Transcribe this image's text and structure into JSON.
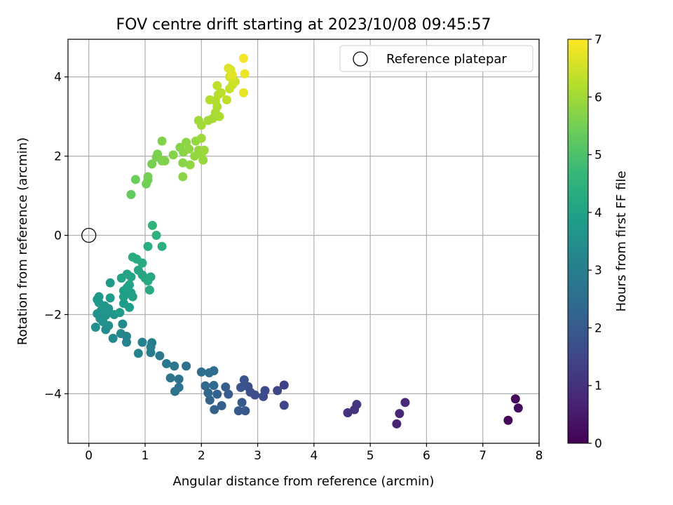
{
  "chart_data": {
    "type": "scatter",
    "title": "FOV centre drift starting at 2023/10/08 09:45:57",
    "xlabel": "Angular distance from reference (arcmin)",
    "ylabel": "Rotation from reference (arcmin)",
    "xlim": [
      -0.37,
      8.0
    ],
    "ylim": [
      -5.25,
      4.95
    ],
    "xticks": [
      0,
      1,
      2,
      3,
      4,
      5,
      6,
      7,
      8
    ],
    "yticks": [
      -4,
      -2,
      0,
      2,
      4
    ],
    "ytick_labels": [
      "−4",
      "−2",
      "0",
      "2",
      "4"
    ],
    "grid": true,
    "legend": {
      "position": "top-right",
      "entries": [
        "Reference platepar"
      ]
    },
    "reference_point": {
      "x": 0,
      "y": 0,
      "label": "Reference platepar"
    },
    "colorbar": {
      "label": "Hours from first FF file",
      "range": [
        0,
        7
      ],
      "ticks": [
        0,
        1,
        2,
        3,
        4,
        5,
        6,
        7
      ],
      "colormap": "viridis",
      "colormap_stops": [
        "#440154",
        "#482878",
        "#3e4989",
        "#31688e",
        "#26828e",
        "#1f9e89",
        "#35b779",
        "#6ece58",
        "#b5de2b",
        "#fde725"
      ]
    },
    "points": [
      {
        "x": 7.45,
        "y": -4.67,
        "h": 0.1
      },
      {
        "x": 7.58,
        "y": -4.13,
        "h": 0.15
      },
      {
        "x": 7.63,
        "y": -4.36,
        "h": 0.2
      },
      {
        "x": 5.47,
        "y": -4.76,
        "h": 0.7
      },
      {
        "x": 5.52,
        "y": -4.5,
        "h": 0.75
      },
      {
        "x": 5.62,
        "y": -4.22,
        "h": 0.8
      },
      {
        "x": 4.6,
        "y": -4.48,
        "h": 1.0
      },
      {
        "x": 4.72,
        "y": -4.4,
        "h": 1.05
      },
      {
        "x": 4.76,
        "y": -4.27,
        "h": 1.1
      },
      {
        "x": 3.47,
        "y": -3.78,
        "h": 1.4
      },
      {
        "x": 3.47,
        "y": -4.29,
        "h": 1.45
      },
      {
        "x": 3.35,
        "y": -3.92,
        "h": 1.5
      },
      {
        "x": 3.13,
        "y": -3.92,
        "h": 1.55
      },
      {
        "x": 3.1,
        "y": -4.07,
        "h": 1.6
      },
      {
        "x": 2.95,
        "y": -4.03,
        "h": 1.65
      },
      {
        "x": 2.87,
        "y": -3.96,
        "h": 1.7
      },
      {
        "x": 2.83,
        "y": -3.82,
        "h": 1.75
      },
      {
        "x": 2.76,
        "y": -3.65,
        "h": 1.8
      },
      {
        "x": 2.7,
        "y": -3.84,
        "h": 1.85
      },
      {
        "x": 2.78,
        "y": -4.43,
        "h": 1.9
      },
      {
        "x": 2.72,
        "y": -4.22,
        "h": 1.95
      },
      {
        "x": 2.66,
        "y": -4.43,
        "h": 1.98
      },
      {
        "x": 2.48,
        "y": -4.01,
        "h": 2.0
      },
      {
        "x": 2.43,
        "y": -3.83,
        "h": 2.05
      },
      {
        "x": 2.36,
        "y": -4.3,
        "h": 2.1
      },
      {
        "x": 2.28,
        "y": -4.01,
        "h": 2.15
      },
      {
        "x": 2.23,
        "y": -4.4,
        "h": 2.2
      },
      {
        "x": 2.15,
        "y": -4.16,
        "h": 2.25
      },
      {
        "x": 2.12,
        "y": -3.98,
        "h": 2.3
      },
      {
        "x": 2.07,
        "y": -3.8,
        "h": 2.35
      },
      {
        "x": 2.22,
        "y": -3.79,
        "h": 2.4
      },
      {
        "x": 2.22,
        "y": -3.42,
        "h": 2.45
      },
      {
        "x": 2.14,
        "y": -3.47,
        "h": 2.5
      },
      {
        "x": 2.0,
        "y": -3.45,
        "h": 2.55
      },
      {
        "x": 1.73,
        "y": -3.3,
        "h": 2.6
      },
      {
        "x": 1.6,
        "y": -3.84,
        "h": 2.62
      },
      {
        "x": 1.53,
        "y": -3.94,
        "h": 2.65
      },
      {
        "x": 1.6,
        "y": -3.63,
        "h": 2.68
      },
      {
        "x": 1.45,
        "y": -3.6,
        "h": 2.7
      },
      {
        "x": 1.52,
        "y": -3.3,
        "h": 2.75
      },
      {
        "x": 1.38,
        "y": -3.24,
        "h": 2.8
      },
      {
        "x": 1.26,
        "y": -3.04,
        "h": 2.85
      },
      {
        "x": 1.1,
        "y": -2.96,
        "h": 2.9
      },
      {
        "x": 1.12,
        "y": -2.71,
        "h": 2.95
      },
      {
        "x": 1.1,
        "y": -2.82,
        "h": 3.0
      },
      {
        "x": 0.95,
        "y": -2.7,
        "h": 3.05
      },
      {
        "x": 0.88,
        "y": -2.98,
        "h": 3.1
      },
      {
        "x": 0.67,
        "y": -2.7,
        "h": 3.15
      },
      {
        "x": 0.67,
        "y": -2.55,
        "h": 3.2
      },
      {
        "x": 0.57,
        "y": -2.48,
        "h": 3.25
      },
      {
        "x": 0.43,
        "y": -2.6,
        "h": 3.3
      },
      {
        "x": 0.6,
        "y": -2.24,
        "h": 3.35
      },
      {
        "x": 0.3,
        "y": -2.38,
        "h": 3.4
      },
      {
        "x": 0.35,
        "y": -2.28,
        "h": 3.45
      },
      {
        "x": 0.25,
        "y": -2.18,
        "h": 3.5
      },
      {
        "x": 0.12,
        "y": -2.32,
        "h": 3.53
      },
      {
        "x": 0.2,
        "y": -2.1,
        "h": 3.56
      },
      {
        "x": 0.15,
        "y": -1.98,
        "h": 3.58
      },
      {
        "x": 0.22,
        "y": -1.9,
        "h": 3.6
      },
      {
        "x": 0.3,
        "y": -2.02,
        "h": 3.62
      },
      {
        "x": 0.35,
        "y": -1.85,
        "h": 3.65
      },
      {
        "x": 0.45,
        "y": -2.0,
        "h": 3.68
      },
      {
        "x": 0.28,
        "y": -1.78,
        "h": 3.7
      },
      {
        "x": 0.18,
        "y": -1.7,
        "h": 3.72
      },
      {
        "x": 0.15,
        "y": -1.62,
        "h": 3.74
      },
      {
        "x": 0.18,
        "y": -1.55,
        "h": 3.76
      },
      {
        "x": 0.38,
        "y": -1.58,
        "h": 3.78
      },
      {
        "x": 0.38,
        "y": -1.2,
        "h": 3.8
      },
      {
        "x": 0.55,
        "y": -1.95,
        "h": 3.82
      },
      {
        "x": 0.62,
        "y": -1.72,
        "h": 3.85
      },
      {
        "x": 0.72,
        "y": -1.82,
        "h": 3.88
      },
      {
        "x": 0.62,
        "y": -1.55,
        "h": 3.9
      },
      {
        "x": 0.62,
        "y": -1.4,
        "h": 3.92
      },
      {
        "x": 0.68,
        "y": -1.32,
        "h": 3.94
      },
      {
        "x": 0.75,
        "y": -1.45,
        "h": 3.96
      },
      {
        "x": 0.78,
        "y": -1.55,
        "h": 3.98
      },
      {
        "x": 0.72,
        "y": -1.25,
        "h": 4.0
      },
      {
        "x": 0.58,
        "y": -1.08,
        "h": 4.02
      },
      {
        "x": 0.68,
        "y": -0.98,
        "h": 4.05
      },
      {
        "x": 0.75,
        "y": -1.05,
        "h": 4.08
      },
      {
        "x": 0.88,
        "y": -0.88,
        "h": 4.1
      },
      {
        "x": 0.95,
        "y": -1.0,
        "h": 4.12
      },
      {
        "x": 1.0,
        "y": -1.08,
        "h": 4.15
      },
      {
        "x": 1.1,
        "y": -1.05,
        "h": 4.18
      },
      {
        "x": 1.08,
        "y": -1.38,
        "h": 4.2
      },
      {
        "x": 1.05,
        "y": -1.15,
        "h": 4.22
      },
      {
        "x": 0.95,
        "y": -0.7,
        "h": 4.25
      },
      {
        "x": 0.85,
        "y": -0.6,
        "h": 4.28
      },
      {
        "x": 0.78,
        "y": -0.55,
        "h": 4.3
      },
      {
        "x": 1.05,
        "y": -0.28,
        "h": 4.35
      },
      {
        "x": 1.3,
        "y": -0.28,
        "h": 4.4
      },
      {
        "x": 1.2,
        "y": 0.0,
        "h": 4.45
      },
      {
        "x": 1.13,
        "y": 0.25,
        "h": 4.5
      },
      {
        "x": 0.75,
        "y": 1.03,
        "h": 5.3
      },
      {
        "x": 0.83,
        "y": 1.41,
        "h": 5.4
      },
      {
        "x": 1.02,
        "y": 1.3,
        "h": 5.45
      },
      {
        "x": 1.05,
        "y": 1.4,
        "h": 5.48
      },
      {
        "x": 1.05,
        "y": 1.48,
        "h": 5.5
      },
      {
        "x": 1.12,
        "y": 1.8,
        "h": 5.55
      },
      {
        "x": 1.2,
        "y": 1.97,
        "h": 5.58
      },
      {
        "x": 1.22,
        "y": 2.05,
        "h": 5.6
      },
      {
        "x": 1.3,
        "y": 1.88,
        "h": 5.62
      },
      {
        "x": 1.35,
        "y": 1.88,
        "h": 5.64
      },
      {
        "x": 1.3,
        "y": 2.38,
        "h": 5.66
      },
      {
        "x": 1.5,
        "y": 2.03,
        "h": 5.68
      },
      {
        "x": 1.62,
        "y": 2.22,
        "h": 5.7
      },
      {
        "x": 1.68,
        "y": 2.1,
        "h": 5.72
      },
      {
        "x": 1.67,
        "y": 1.83,
        "h": 5.74
      },
      {
        "x": 1.67,
        "y": 1.48,
        "h": 5.76
      },
      {
        "x": 1.73,
        "y": 2.35,
        "h": 5.78
      },
      {
        "x": 1.78,
        "y": 2.18,
        "h": 5.8
      },
      {
        "x": 1.8,
        "y": 1.78,
        "h": 5.82
      },
      {
        "x": 1.88,
        "y": 2.0,
        "h": 5.84
      },
      {
        "x": 1.9,
        "y": 2.38,
        "h": 5.86
      },
      {
        "x": 1.95,
        "y": 2.15,
        "h": 5.88
      },
      {
        "x": 2.0,
        "y": 2.05,
        "h": 5.9
      },
      {
        "x": 2.03,
        "y": 1.9,
        "h": 5.92
      },
      {
        "x": 2.05,
        "y": 2.15,
        "h": 5.94
      },
      {
        "x": 2.0,
        "y": 2.45,
        "h": 5.96
      },
      {
        "x": 1.95,
        "y": 2.9,
        "h": 5.98
      },
      {
        "x": 2.0,
        "y": 2.78,
        "h": 6.0
      },
      {
        "x": 2.12,
        "y": 2.9,
        "h": 6.03
      },
      {
        "x": 2.2,
        "y": 2.95,
        "h": 6.06
      },
      {
        "x": 2.25,
        "y": 3.1,
        "h": 6.09
      },
      {
        "x": 2.32,
        "y": 3.0,
        "h": 6.12
      },
      {
        "x": 2.28,
        "y": 3.25,
        "h": 6.15
      },
      {
        "x": 2.25,
        "y": 3.4,
        "h": 6.18
      },
      {
        "x": 2.15,
        "y": 3.42,
        "h": 6.21
      },
      {
        "x": 2.3,
        "y": 3.55,
        "h": 6.24
      },
      {
        "x": 2.35,
        "y": 3.6,
        "h": 6.27
      },
      {
        "x": 2.28,
        "y": 3.78,
        "h": 6.3
      },
      {
        "x": 2.45,
        "y": 3.42,
        "h": 6.35
      },
      {
        "x": 2.5,
        "y": 3.7,
        "h": 6.4
      },
      {
        "x": 2.55,
        "y": 3.8,
        "h": 6.45
      },
      {
        "x": 2.6,
        "y": 3.88,
        "h": 6.5
      },
      {
        "x": 2.5,
        "y": 4.0,
        "h": 6.55
      },
      {
        "x": 2.52,
        "y": 4.18,
        "h": 6.6
      },
      {
        "x": 2.48,
        "y": 4.22,
        "h": 6.65
      },
      {
        "x": 2.55,
        "y": 4.05,
        "h": 6.7
      },
      {
        "x": 2.75,
        "y": 3.6,
        "h": 6.75
      },
      {
        "x": 2.77,
        "y": 4.08,
        "h": 6.8
      },
      {
        "x": 2.75,
        "y": 4.47,
        "h": 6.9
      }
    ]
  }
}
